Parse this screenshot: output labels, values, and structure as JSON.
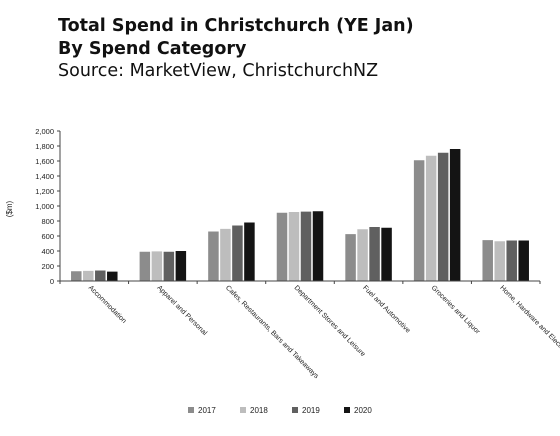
{
  "header": {
    "title_line1": "Total Spend in Christchurch (YE Jan)",
    "title_line2": "By Spend Category",
    "subtitle": "Source: MarketView, ChristchurchNZ"
  },
  "colors": {
    "2017": "#8c8c8c",
    "2018": "#bdbdbd",
    "2019": "#606060",
    "2020": "#141414",
    "axis": "#444444",
    "text": "#222222"
  },
  "chart_data": {
    "type": "bar",
    "title": "Total Spend in Christchurch (YE Jan)",
    "subtitle": "By Spend Category",
    "ylabel": "($m)",
    "xlabel": "",
    "ylim": [
      0,
      2000
    ],
    "ytick_step": 200,
    "ytick_labels": [
      "0",
      "200",
      "400",
      "600",
      "800",
      "1,000",
      "1,200",
      "1,400",
      "1,600",
      "1,800",
      "2,000"
    ],
    "grid": false,
    "legend_position": "bottom",
    "categories": [
      "Accommodation",
      "Apparel and Personal",
      "Cafes, Restaurants, Bars and Takeaways",
      "Department Stores and Leisure",
      "Fuel and Automotive",
      "Groceries and Liquor",
      "Home, Hardware and Electrical"
    ],
    "series": [
      {
        "name": "2017",
        "values": [
          130,
          390,
          660,
          910,
          625,
          1610,
          545
        ]
      },
      {
        "name": "2018",
        "values": [
          135,
          395,
          695,
          920,
          690,
          1670,
          530
        ]
      },
      {
        "name": "2019",
        "values": [
          140,
          390,
          740,
          925,
          720,
          1710,
          540
        ]
      },
      {
        "name": "2020",
        "values": [
          125,
          400,
          780,
          930,
          710,
          1760,
          540
        ]
      }
    ]
  }
}
